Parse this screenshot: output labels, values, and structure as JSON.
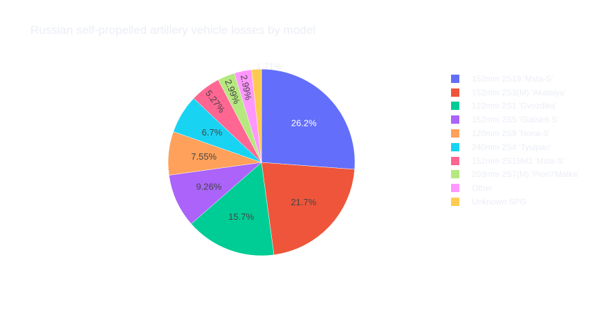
{
  "chart_data": {
    "type": "pie",
    "title": "Russian self-propelled artillery vehicle losses by model",
    "sort": "descending",
    "direction": "clockwise",
    "legend_position": "right",
    "labels": [
      "152mm 2S19 'Msta-S'",
      "152mm 2S3(M) 'Akatsiya'",
      "122mm 2S1 'Gvozdika'",
      "152mm 2S5 'Giatsint-S'",
      "120mm 2S9 'Nona-S'",
      "240mm 2S4 'Tyulpan'",
      "152mm 2S19M2 'Msta-S'",
      "203mm 2S7(M) 'Pion'/'Malka'",
      "Other",
      "Unknown SPG"
    ],
    "percent_labels": [
      "26.2%",
      "21.7%",
      "15.7%",
      "9.26%",
      "7.55%",
      "6.7%",
      "5.27%",
      "2.99%",
      "2.99%",
      "1.71%"
    ],
    "values": [
      26.2,
      21.7,
      15.7,
      9.26,
      7.55,
      6.7,
      5.27,
      2.99,
      2.99,
      1.71
    ],
    "colors": [
      "#636efa",
      "#EF553B",
      "#00cc96",
      "#ab63fa",
      "#FFA15A",
      "#19d3f3",
      "#FF6692",
      "#B6E880",
      "#FF97FF",
      "#FECB52"
    ],
    "label_colors": [
      "#ffffff",
      "#444444",
      "#444444",
      "#444444",
      "#444444",
      "#444444",
      "#444444",
      "#444444",
      "#444444",
      "#ebeef5"
    ]
  }
}
